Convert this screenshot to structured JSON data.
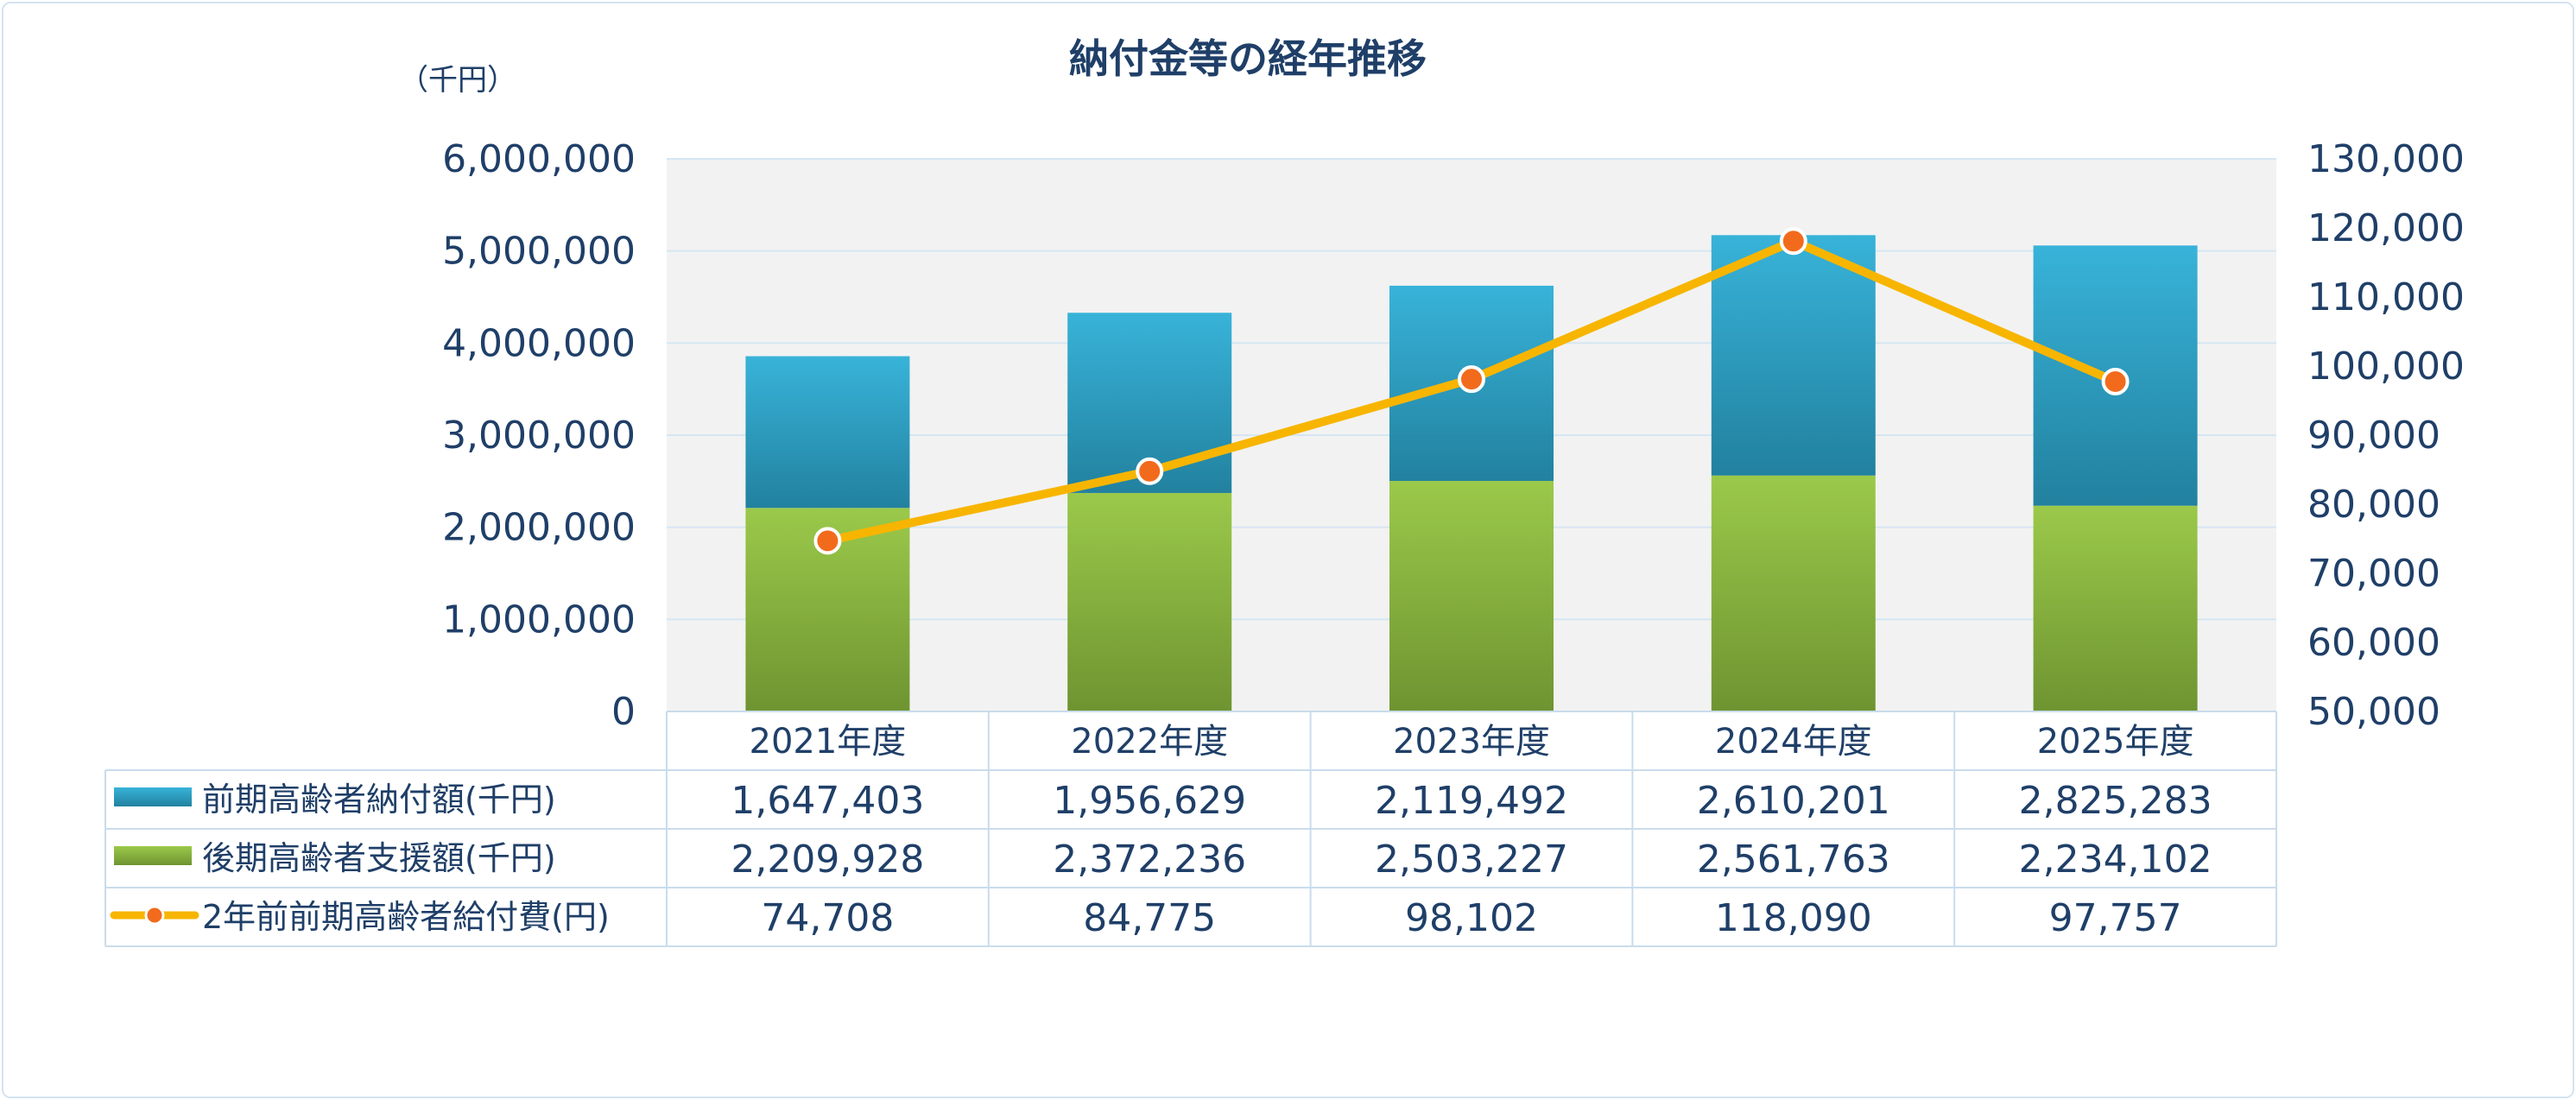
{
  "chart_data": {
    "type": "bar",
    "title": "納付金等の経年推移",
    "unit_label": "（千円）",
    "categories": [
      "2021年度",
      "2022年度",
      "2023年度",
      "2024年度",
      "2025年度"
    ],
    "y_left": {
      "min": 0,
      "max": 6000000,
      "step": 1000000,
      "tick_labels": [
        "0",
        "1,000,000",
        "2,000,000",
        "3,000,000",
        "4,000,000",
        "5,000,000",
        "6,000,000"
      ]
    },
    "y_right": {
      "min": 50000,
      "max": 130000,
      "step": 10000,
      "tick_labels": [
        "50,000",
        "60,000",
        "70,000",
        "80,000",
        "90,000",
        "100,000",
        "110,000",
        "120,000",
        "130,000"
      ]
    },
    "grid": true,
    "legend_placement": "data-table",
    "series": [
      {
        "name": "前期高齢者納付額(千円)",
        "kind": "stacked-bar",
        "axis": "left",
        "stack_order": 2,
        "color": "#2e9cc4",
        "values": [
          1647403,
          1956629,
          2119492,
          2610201,
          2825283
        ],
        "labels": [
          "1,647,403",
          "1,956,629",
          "2,119,492",
          "2,610,201",
          "2,825,283"
        ]
      },
      {
        "name": "後期高齢者支援額(千円)",
        "kind": "stacked-bar",
        "axis": "left",
        "stack_order": 1,
        "color": "#8cbb3f",
        "values": [
          2209928,
          2372236,
          2503227,
          2561763,
          2234102
        ],
        "labels": [
          "2,209,928",
          "2,372,236",
          "2,503,227",
          "2,561,763",
          "2,234,102"
        ]
      },
      {
        "name": "2年前前期高齢者給付費(円)",
        "kind": "line",
        "axis": "right",
        "color": "#f7b500",
        "marker_color": "#f26b1d",
        "values": [
          74708,
          84775,
          98102,
          118090,
          97757
        ],
        "labels": [
          "74,708",
          "84,775",
          "98,102",
          "118,090",
          "97,757"
        ]
      }
    ]
  }
}
